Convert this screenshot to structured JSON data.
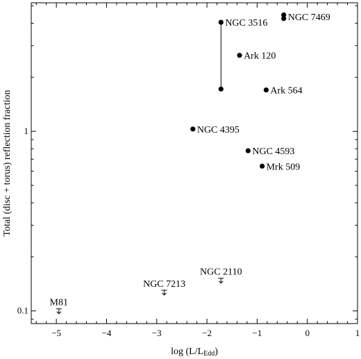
{
  "chart_data": {
    "type": "scatter",
    "title": "",
    "xlabel_main": "log (L/L",
    "xlabel_sub": "Edd",
    "xlabel_close": ")",
    "ylabel": "Total (disc + torus) reflection fraction",
    "xlim": [
      -5.5,
      1
    ],
    "ylim": [
      0.085,
      5.2
    ],
    "y_scale": "log",
    "grid": false,
    "x_ticks": [
      -5,
      -4,
      -3,
      -2,
      -1,
      0,
      1
    ],
    "x_tick_labels": [
      "−5",
      "−4",
      "−3",
      "−2",
      "−1",
      "0",
      "1"
    ],
    "y_ticks_labeled": [
      0.1,
      1
    ],
    "y_tick_labels": [
      "0.1",
      "1"
    ],
    "points": [
      {
        "name": "NGC 3516",
        "x": -1.72,
        "y": 4.05
      },
      {
        "name": "NGC 3516 low",
        "x": -1.72,
        "y": 1.72
      },
      {
        "name": "NGC 7469",
        "x": -0.47,
        "y": 4.45
      },
      {
        "name": "NGC 7469 b",
        "x": -0.47,
        "y": 4.25
      },
      {
        "name": "Ark 120",
        "x": -1.35,
        "y": 2.65
      },
      {
        "name": "Ark 564",
        "x": -0.82,
        "y": 1.7
      },
      {
        "name": "NGC 4395",
        "x": -2.28,
        "y": 1.03
      },
      {
        "name": "NGC 4593",
        "x": -1.18,
        "y": 0.78
      },
      {
        "name": "Mrk 509",
        "x": -0.9,
        "y": 0.64
      }
    ],
    "upper_limits": [
      {
        "name": "M81",
        "x": -4.95,
        "y": 0.1
      },
      {
        "name": "NGC 7213",
        "x": -2.85,
        "y": 0.127
      },
      {
        "name": "NGC 2110",
        "x": -1.72,
        "y": 0.148
      }
    ],
    "connector": {
      "x": -1.72,
      "y_low": 1.72,
      "y_high": 4.05
    },
    "labels": [
      {
        "text": "NGC 3516",
        "x": -1.72,
        "y": 4.05,
        "anchor": "right"
      },
      {
        "text": "NGC 7469",
        "x": -0.47,
        "y": 4.35,
        "anchor": "right"
      },
      {
        "text": "Ark 120",
        "x": -1.35,
        "y": 2.65,
        "anchor": "right"
      },
      {
        "text": "Ark 564",
        "x": -0.82,
        "y": 1.7,
        "anchor": "right"
      },
      {
        "text": "NGC 4395",
        "x": -2.28,
        "y": 1.03,
        "anchor": "right"
      },
      {
        "text": "NGC 4593",
        "x": -1.18,
        "y": 0.78,
        "anchor": "right"
      },
      {
        "text": "Mrk 509",
        "x": -0.9,
        "y": 0.64,
        "anchor": "right"
      },
      {
        "text": "M81",
        "x": -4.95,
        "y": 0.1,
        "anchor": "above"
      },
      {
        "text": "NGC 7213",
        "x": -2.85,
        "y": 0.127,
        "anchor": "above"
      },
      {
        "text": "NGC 2110",
        "x": -1.72,
        "y": 0.148,
        "anchor": "above"
      }
    ]
  }
}
